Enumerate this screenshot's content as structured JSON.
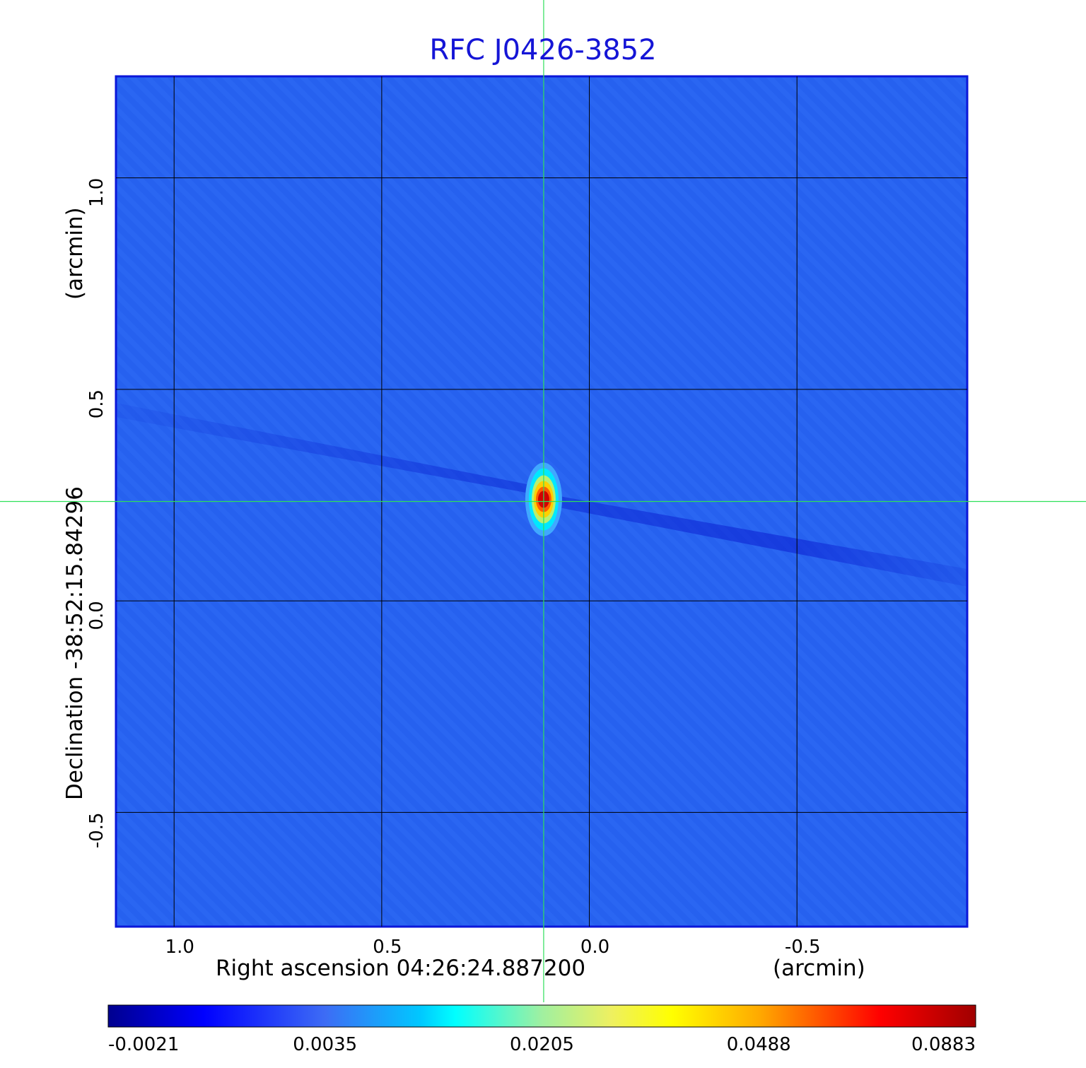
{
  "chart_data": {
    "type": "heatmap",
    "title": "RFC J0426-3852",
    "xlabel": "Right ascension  04:26:24.887200",
    "xlabel_unit": "(arcmin)",
    "ylabel": "Declination  -38:52:15.84296",
    "ylabel_unit": "(arcmin)",
    "x_ticks": [
      "1.0",
      "0.5",
      "0.0",
      "-0.5"
    ],
    "x_tick_values": [
      1.0,
      0.5,
      0.0,
      -0.5
    ],
    "y_ticks": [
      "1.0",
      "0.5",
      "0.0",
      "-0.5"
    ],
    "y_tick_values": [
      1.0,
      0.5,
      0.0,
      -0.5
    ],
    "xlim": [
      1.14,
      -0.91
    ],
    "ylim": [
      -0.77,
      1.24
    ],
    "grid": true,
    "colormap": "jet",
    "colorbar_ticks": [
      "-0.0021",
      "0.0035",
      "0.0205",
      "0.0488",
      "0.0883"
    ],
    "colorbar_range": [
      -0.0021,
      0.0883
    ],
    "peak": {
      "x": 0.11,
      "y": 0.24,
      "value": 0.0883
    },
    "crosshair": {
      "x": 0.11,
      "y": 0.235
    },
    "colors": {
      "background_field": "#2a66f2",
      "frame": "#0b17d9",
      "title": "#1515d6",
      "crosshair": "#2ee05a",
      "grid": "#000000"
    }
  }
}
